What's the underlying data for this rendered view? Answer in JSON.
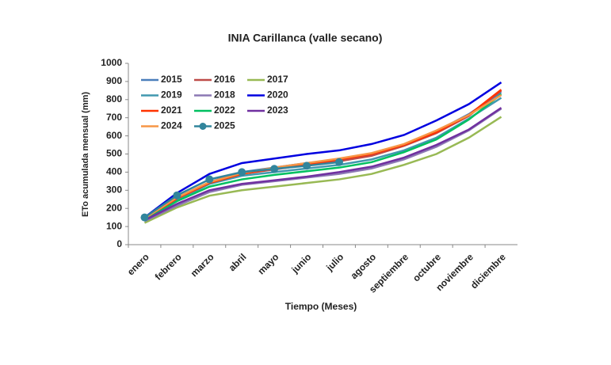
{
  "chart_data": {
    "type": "line",
    "title": "INIA Carillanca (valle secano)",
    "x_label": "Tiempo (Meses)",
    "y_label": "ETo acumulada mensual (mm)",
    "categories": [
      "enero",
      "febrero",
      "marzo",
      "abril",
      "mayo",
      "junio",
      "julio",
      "agosto",
      "septiembre",
      "octubre",
      "noviembre",
      "diciembre"
    ],
    "ylim": [
      0,
      1000
    ],
    "yticks": [
      0,
      100,
      200,
      300,
      400,
      500,
      600,
      700,
      800,
      900,
      1000
    ],
    "series": [
      {
        "name": "2015",
        "color": "#4a7ebb",
        "values": [
          140,
          255,
          345,
          400,
          425,
          450,
          470,
          500,
          550,
          625,
          720,
          840
        ]
      },
      {
        "name": "2016",
        "color": "#be4b48",
        "values": [
          140,
          250,
          340,
          390,
          415,
          440,
          460,
          490,
          545,
          615,
          710,
          850
        ]
      },
      {
        "name": "2017",
        "color": "#98b954",
        "values": [
          120,
          205,
          270,
          300,
          320,
          340,
          360,
          390,
          440,
          500,
          590,
          705
        ]
      },
      {
        "name": "2019",
        "color": "#4198af",
        "values": [
          140,
          245,
          335,
          380,
          400,
          420,
          440,
          470,
          520,
          590,
          695,
          810
        ]
      },
      {
        "name": "2018",
        "color": "#8c78b4",
        "values": [
          130,
          215,
          290,
          330,
          350,
          370,
          390,
          420,
          470,
          540,
          630,
          750
        ]
      },
      {
        "name": "2020",
        "color": "#0000e0",
        "values": [
          150,
          285,
          390,
          450,
          475,
          500,
          520,
          555,
          605,
          685,
          775,
          895
        ]
      },
      {
        "name": "2021",
        "color": "#ff3300",
        "values": [
          140,
          255,
          340,
          390,
          420,
          445,
          470,
          500,
          550,
          620,
          715,
          855
        ]
      },
      {
        "name": "2022",
        "color": "#00c060",
        "values": [
          135,
          240,
          320,
          360,
          385,
          405,
          425,
          455,
          510,
          580,
          690,
          830
        ]
      },
      {
        "name": "2023",
        "color": "#7030a0",
        "values": [
          135,
          225,
          300,
          335,
          355,
          375,
          400,
          430,
          480,
          550,
          635,
          755
        ]
      },
      {
        "name": "2024",
        "color": "#f79646",
        "values": [
          145,
          260,
          345,
          395,
          425,
          450,
          475,
          505,
          555,
          630,
          715,
          825
        ]
      },
      {
        "name": "2025",
        "color": "#31859c",
        "marker": "circle",
        "values": [
          150,
          272,
          360,
          400,
          418,
          435,
          455,
          null,
          null,
          null,
          null,
          null
        ]
      }
    ]
  }
}
